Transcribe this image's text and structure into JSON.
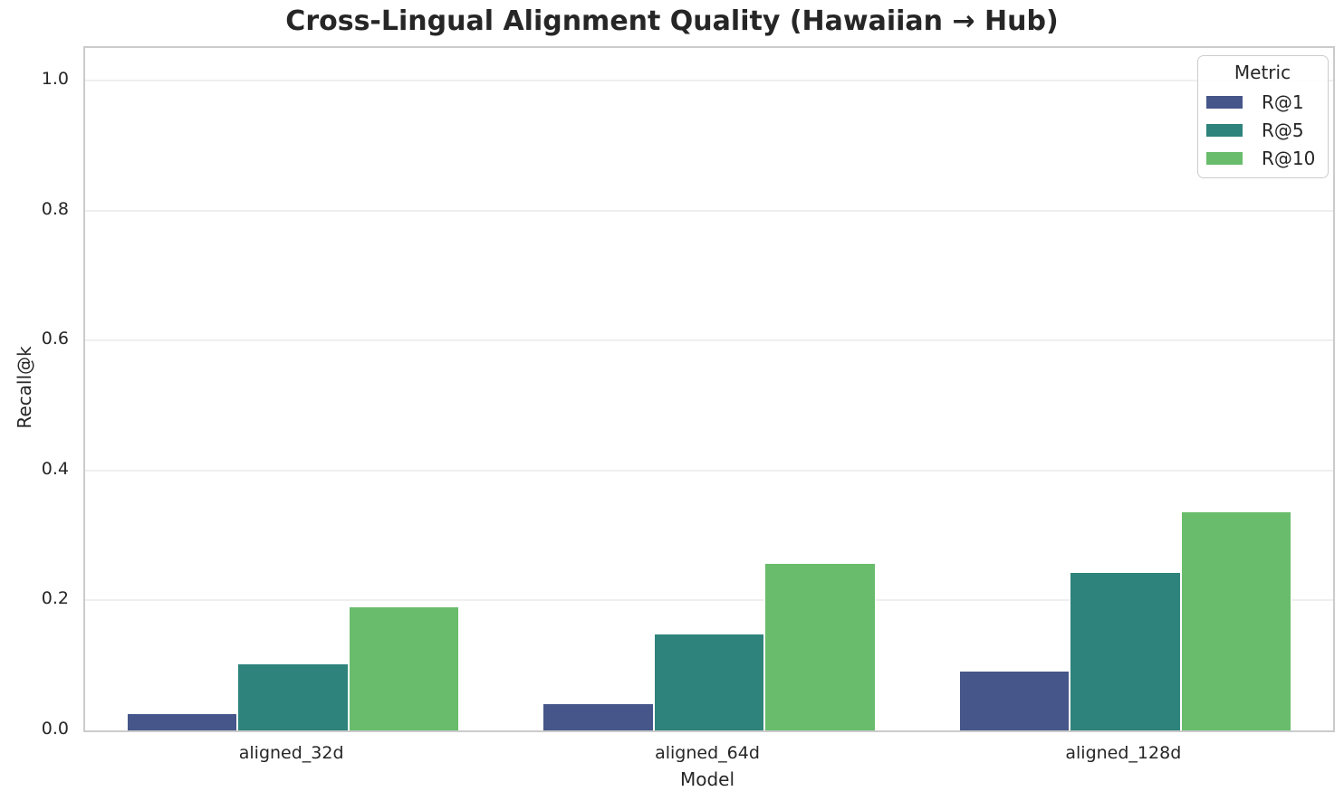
{
  "figure": {
    "title": "Cross-Lingual Alignment Quality (Hawaiian → Hub)"
  },
  "chart_data": {
    "type": "bar",
    "title": "Cross-Lingual Alignment Quality (Hawaiian → Hub)",
    "categories": [
      "aligned_32d",
      "aligned_64d",
      "aligned_128d"
    ],
    "series": [
      {
        "name": "R@1",
        "color": "#46568a",
        "values": [
          0.025,
          0.04,
          0.09
        ]
      },
      {
        "name": "R@5",
        "color": "#2e837c",
        "values": [
          0.102,
          0.148,
          0.243
        ]
      },
      {
        "name": "R@10",
        "color": "#69bc6b",
        "values": [
          0.189,
          0.256,
          0.335
        ]
      }
    ],
    "xlabel": "Model",
    "ylabel": "Recall@k",
    "ylim": [
      0,
      1.05
    ],
    "yticks": [
      "0.0",
      "0.2",
      "0.4",
      "0.6",
      "0.8",
      "1.0"
    ],
    "legend": {
      "title": "Metric",
      "position": "upper right"
    },
    "grid": "horizontal",
    "styles": {
      "grid_color": "#efefef",
      "border_color": "#cbcbcb",
      "text_color": "#262626",
      "background": "#ffffff",
      "bar_group_width_fraction": 0.8
    }
  }
}
